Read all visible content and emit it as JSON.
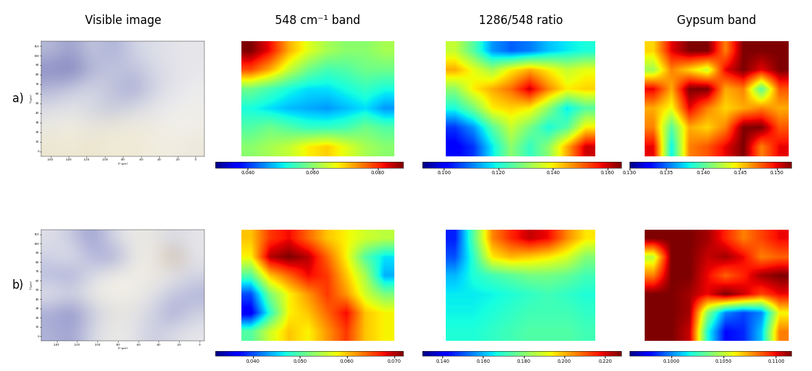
{
  "column_titles": [
    "Visible image",
    "548 cm⁻¹ band",
    "1286/548 ratio",
    "Gypsum band"
  ],
  "row_labels": [
    "a)",
    "b)"
  ],
  "chart_data": [
    {
      "type": "image",
      "x_label": "X (µm)",
      "y_label": "Y (µm)",
      "xlim": [
        -170,
        10
      ],
      "ylim": [
        -5,
        115
      ],
      "xticks": [
        -160,
        -140,
        -120,
        -100,
        -80,
        -60,
        -40,
        -20,
        0
      ],
      "yticks": [
        0,
        10,
        20,
        30,
        40,
        50,
        60,
        70,
        80,
        90,
        100,
        110
      ],
      "pixels": [
        [
          "#b8bcd8",
          "#9a9ccb",
          "#c8cde0",
          "#a8acd6",
          "#d0d4e4",
          "#dcdee8",
          "#e4e4ea",
          "#e6e6ea"
        ],
        [
          "#8a8cc4",
          "#7c80bc",
          "#b0b4d6",
          "#c4c8de",
          "#bcc0dc",
          "#d6d8e6",
          "#e2e2e8",
          "#e8e8ec"
        ],
        [
          "#b4b8d8",
          "#c8cce0",
          "#d8dae6",
          "#bfc3dc",
          "#a4a8d2",
          "#d0d2e2",
          "#e4e4ea",
          "#ececee"
        ],
        [
          "#dcdce6",
          "#e4e4e8",
          "#d4d6e2",
          "#c6c8dc",
          "#d8dae4",
          "#e6e6ea",
          "#eeeeee",
          "#f0eeea"
        ],
        [
          "#ecebe2",
          "#f0eee0",
          "#e8e6dc",
          "#ecead8",
          "#f0ecdc",
          "#eeeae0",
          "#f2f0ea",
          "#f0eee6"
        ],
        [
          "#ece6d0",
          "#f0ead4",
          "#ebe4cc",
          "#f2ecd8",
          "#eee8d4",
          "#f2eede",
          "#f0ece0",
          "#ece8dc"
        ]
      ]
    },
    {
      "type": "heatmap",
      "color": "jet",
      "tick_labels": false,
      "color_range": [
        0.03,
        0.088
      ],
      "color_ticks": [
        {
          "value": 0.04,
          "label": "0.040"
        },
        {
          "value": 0.06,
          "label": "0.060"
        },
        {
          "value": 0.08,
          "label": "0.080"
        }
      ],
      "cells": [
        [
          0.088,
          0.082,
          0.072,
          0.066,
          0.062,
          0.06,
          0.06,
          0.062
        ],
        [
          0.078,
          0.072,
          0.064,
          0.058,
          0.055,
          0.056,
          0.058,
          0.058
        ],
        [
          0.058,
          0.055,
          0.052,
          0.05,
          0.05,
          0.052,
          0.054,
          0.052
        ],
        [
          0.052,
          0.05,
          0.048,
          0.047,
          0.046,
          0.048,
          0.05,
          0.046
        ],
        [
          0.056,
          0.058,
          0.056,
          0.054,
          0.054,
          0.055,
          0.058,
          0.056
        ],
        [
          0.06,
          0.062,
          0.064,
          0.068,
          0.07,
          0.066,
          0.062,
          0.06
        ]
      ]
    },
    {
      "type": "heatmap",
      "color": "jet",
      "tick_labels": false,
      "color_range": [
        0.092,
        0.165
      ],
      "color_ticks": [
        {
          "value": 0.1,
          "label": "0.100"
        },
        {
          "value": 0.12,
          "label": "0.120"
        },
        {
          "value": 0.14,
          "label": "0.140"
        },
        {
          "value": 0.16,
          "label": "0.160"
        }
      ],
      "cells": [
        [
          0.135,
          0.125,
          0.112,
          0.108,
          0.11,
          0.115,
          0.118,
          0.12
        ],
        [
          0.145,
          0.138,
          0.132,
          0.14,
          0.145,
          0.14,
          0.135,
          0.138
        ],
        [
          0.13,
          0.14,
          0.145,
          0.15,
          0.16,
          0.148,
          0.14,
          0.142
        ],
        [
          0.12,
          0.128,
          0.14,
          0.142,
          0.14,
          0.13,
          0.118,
          0.125
        ],
        [
          0.105,
          0.112,
          0.125,
          0.135,
          0.128,
          0.12,
          0.125,
          0.14
        ],
        [
          0.1,
          0.105,
          0.118,
          0.13,
          0.122,
          0.13,
          0.145,
          0.16
        ]
      ]
    },
    {
      "type": "heatmap",
      "color": "jet",
      "tick_labels": false,
      "color_range": [
        0.13,
        0.152
      ],
      "color_ticks": [
        {
          "value": 0.13,
          "label": "0.130"
        },
        {
          "value": 0.135,
          "label": "0.135"
        },
        {
          "value": 0.14,
          "label": "0.140"
        },
        {
          "value": 0.145,
          "label": "0.145"
        },
        {
          "value": 0.15,
          "label": "0.150"
        }
      ],
      "cells": [
        [
          0.145,
          0.15,
          0.152,
          0.152,
          0.147,
          0.152,
          0.152,
          0.152
        ],
        [
          0.142,
          0.147,
          0.145,
          0.143,
          0.15,
          0.152,
          0.15,
          0.152
        ],
        [
          0.15,
          0.146,
          0.152,
          0.152,
          0.146,
          0.147,
          0.14,
          0.148
        ],
        [
          0.146,
          0.144,
          0.15,
          0.147,
          0.145,
          0.146,
          0.147,
          0.146
        ],
        [
          0.147,
          0.14,
          0.146,
          0.145,
          0.147,
          0.152,
          0.152,
          0.148
        ],
        [
          0.15,
          0.138,
          0.147,
          0.148,
          0.15,
          0.152,
          0.147,
          0.15
        ]
      ]
    },
    {
      "type": "image",
      "x_label": "X (µm)",
      "y_label": "Y (µm)",
      "xlim": [
        -155,
        5
      ],
      "ylim": [
        -5,
        115
      ],
      "xticks": [
        -140,
        -120,
        -100,
        -80,
        -60,
        -40,
        -20,
        0
      ],
      "yticks": [
        0,
        10,
        20,
        30,
        40,
        50,
        60,
        70,
        80,
        90,
        100,
        110
      ],
      "pixels": [
        [
          "#e0e0ea",
          "#c8cae0",
          "#9a9ed0",
          "#d6d8e6",
          "#eceae6",
          "#e8e6e2",
          "#d8dae6",
          "#e6e6ea"
        ],
        [
          "#cfd1e4",
          "#e4e4ea",
          "#b4b8dc",
          "#a4a8d4",
          "#e8e6e4",
          "#efede4",
          "#c8b8a8",
          "#e6e6ea"
        ],
        [
          "#b8bcde",
          "#a8acd6",
          "#dcdde8",
          "#f0eee6",
          "#f2f0e8",
          "#ece8e0",
          "#e6e6ea",
          "#d4d6e4"
        ],
        [
          "#e6e6ea",
          "#d4d6e4",
          "#ecebe6",
          "#f2f0e6",
          "#eeece4",
          "#e4e4e8",
          "#c4c6de",
          "#b0b4d8"
        ],
        [
          "#a8acd6",
          "#8c90c8",
          "#c8cadf",
          "#e4e2e0",
          "#e6e4e2",
          "#d0d2e4",
          "#a4a8d4",
          "#cfd1e2"
        ],
        [
          "#b0b4d8",
          "#9ca0d0",
          "#d8dae6",
          "#ecebe6",
          "#e6e6ea",
          "#c8cae0",
          "#dcdce6",
          "#e6e6ea"
        ]
      ]
    },
    {
      "type": "heatmap",
      "color": "jet",
      "tick_labels": false,
      "color_range": [
        0.032,
        0.072
      ],
      "color_ticks": [
        {
          "value": 0.04,
          "label": "0.040"
        },
        {
          "value": 0.05,
          "label": "0.050"
        },
        {
          "value": 0.06,
          "label": "0.060"
        },
        {
          "value": 0.07,
          "label": "0.070"
        }
      ],
      "cells": [
        [
          0.06,
          0.066,
          0.068,
          0.064,
          0.06,
          0.058,
          0.056,
          0.055
        ],
        [
          0.058,
          0.07,
          0.072,
          0.07,
          0.064,
          0.058,
          0.05,
          0.046
        ],
        [
          0.05,
          0.06,
          0.064,
          0.068,
          0.066,
          0.06,
          0.054,
          0.044
        ],
        [
          0.04,
          0.052,
          0.058,
          0.062,
          0.066,
          0.062,
          0.056,
          0.052
        ],
        [
          0.036,
          0.048,
          0.058,
          0.06,
          0.064,
          0.068,
          0.06,
          0.058
        ],
        [
          0.05,
          0.056,
          0.06,
          0.058,
          0.062,
          0.066,
          0.06,
          0.058
        ]
      ]
    },
    {
      "type": "heatmap",
      "color": "jet",
      "tick_labels": false,
      "color_range": [
        0.13,
        0.228
      ],
      "color_ticks": [
        {
          "value": 0.14,
          "label": "0.140"
        },
        {
          "value": 0.16,
          "label": "0.160"
        },
        {
          "value": 0.18,
          "label": "0.180"
        },
        {
          "value": 0.2,
          "label": "0.200"
        },
        {
          "value": 0.22,
          "label": "0.220"
        }
      ],
      "cells": [
        [
          0.145,
          0.175,
          0.205,
          0.215,
          0.222,
          0.218,
          0.205,
          0.195
        ],
        [
          0.15,
          0.17,
          0.195,
          0.2,
          0.198,
          0.195,
          0.19,
          0.18
        ],
        [
          0.16,
          0.168,
          0.172,
          0.175,
          0.178,
          0.178,
          0.176,
          0.172
        ],
        [
          0.165,
          0.165,
          0.166,
          0.168,
          0.17,
          0.172,
          0.17,
          0.168
        ],
        [
          0.166,
          0.166,
          0.168,
          0.17,
          0.172,
          0.172,
          0.172,
          0.17
        ],
        [
          0.168,
          0.168,
          0.17,
          0.172,
          0.174,
          0.174,
          0.174,
          0.172
        ]
      ]
    },
    {
      "type": "heatmap",
      "color": "jet",
      "tick_labels": false,
      "color_range": [
        0.096,
        0.1115
      ],
      "color_ticks": [
        {
          "value": 0.1,
          "label": "0.1000"
        },
        {
          "value": 0.105,
          "label": "0.1050"
        },
        {
          "value": 0.11,
          "label": "0.1100"
        }
      ],
      "cells": [
        [
          0.1115,
          0.1115,
          0.1115,
          0.111,
          0.1095,
          0.108,
          0.109,
          0.11
        ],
        [
          0.105,
          0.1115,
          0.1115,
          0.1105,
          0.111,
          0.11,
          0.108,
          0.1085
        ],
        [
          0.108,
          0.1115,
          0.1115,
          0.11,
          0.1085,
          0.1095,
          0.111,
          0.1115
        ],
        [
          0.1115,
          0.1115,
          0.111,
          0.11,
          0.1115,
          0.1105,
          0.109,
          0.11
        ],
        [
          0.1115,
          0.1115,
          0.111,
          0.104,
          0.1,
          0.099,
          0.1,
          0.106
        ],
        [
          0.1115,
          0.1115,
          0.1105,
          0.102,
          0.098,
          0.0985,
          0.101,
          0.108
        ]
      ]
    }
  ]
}
